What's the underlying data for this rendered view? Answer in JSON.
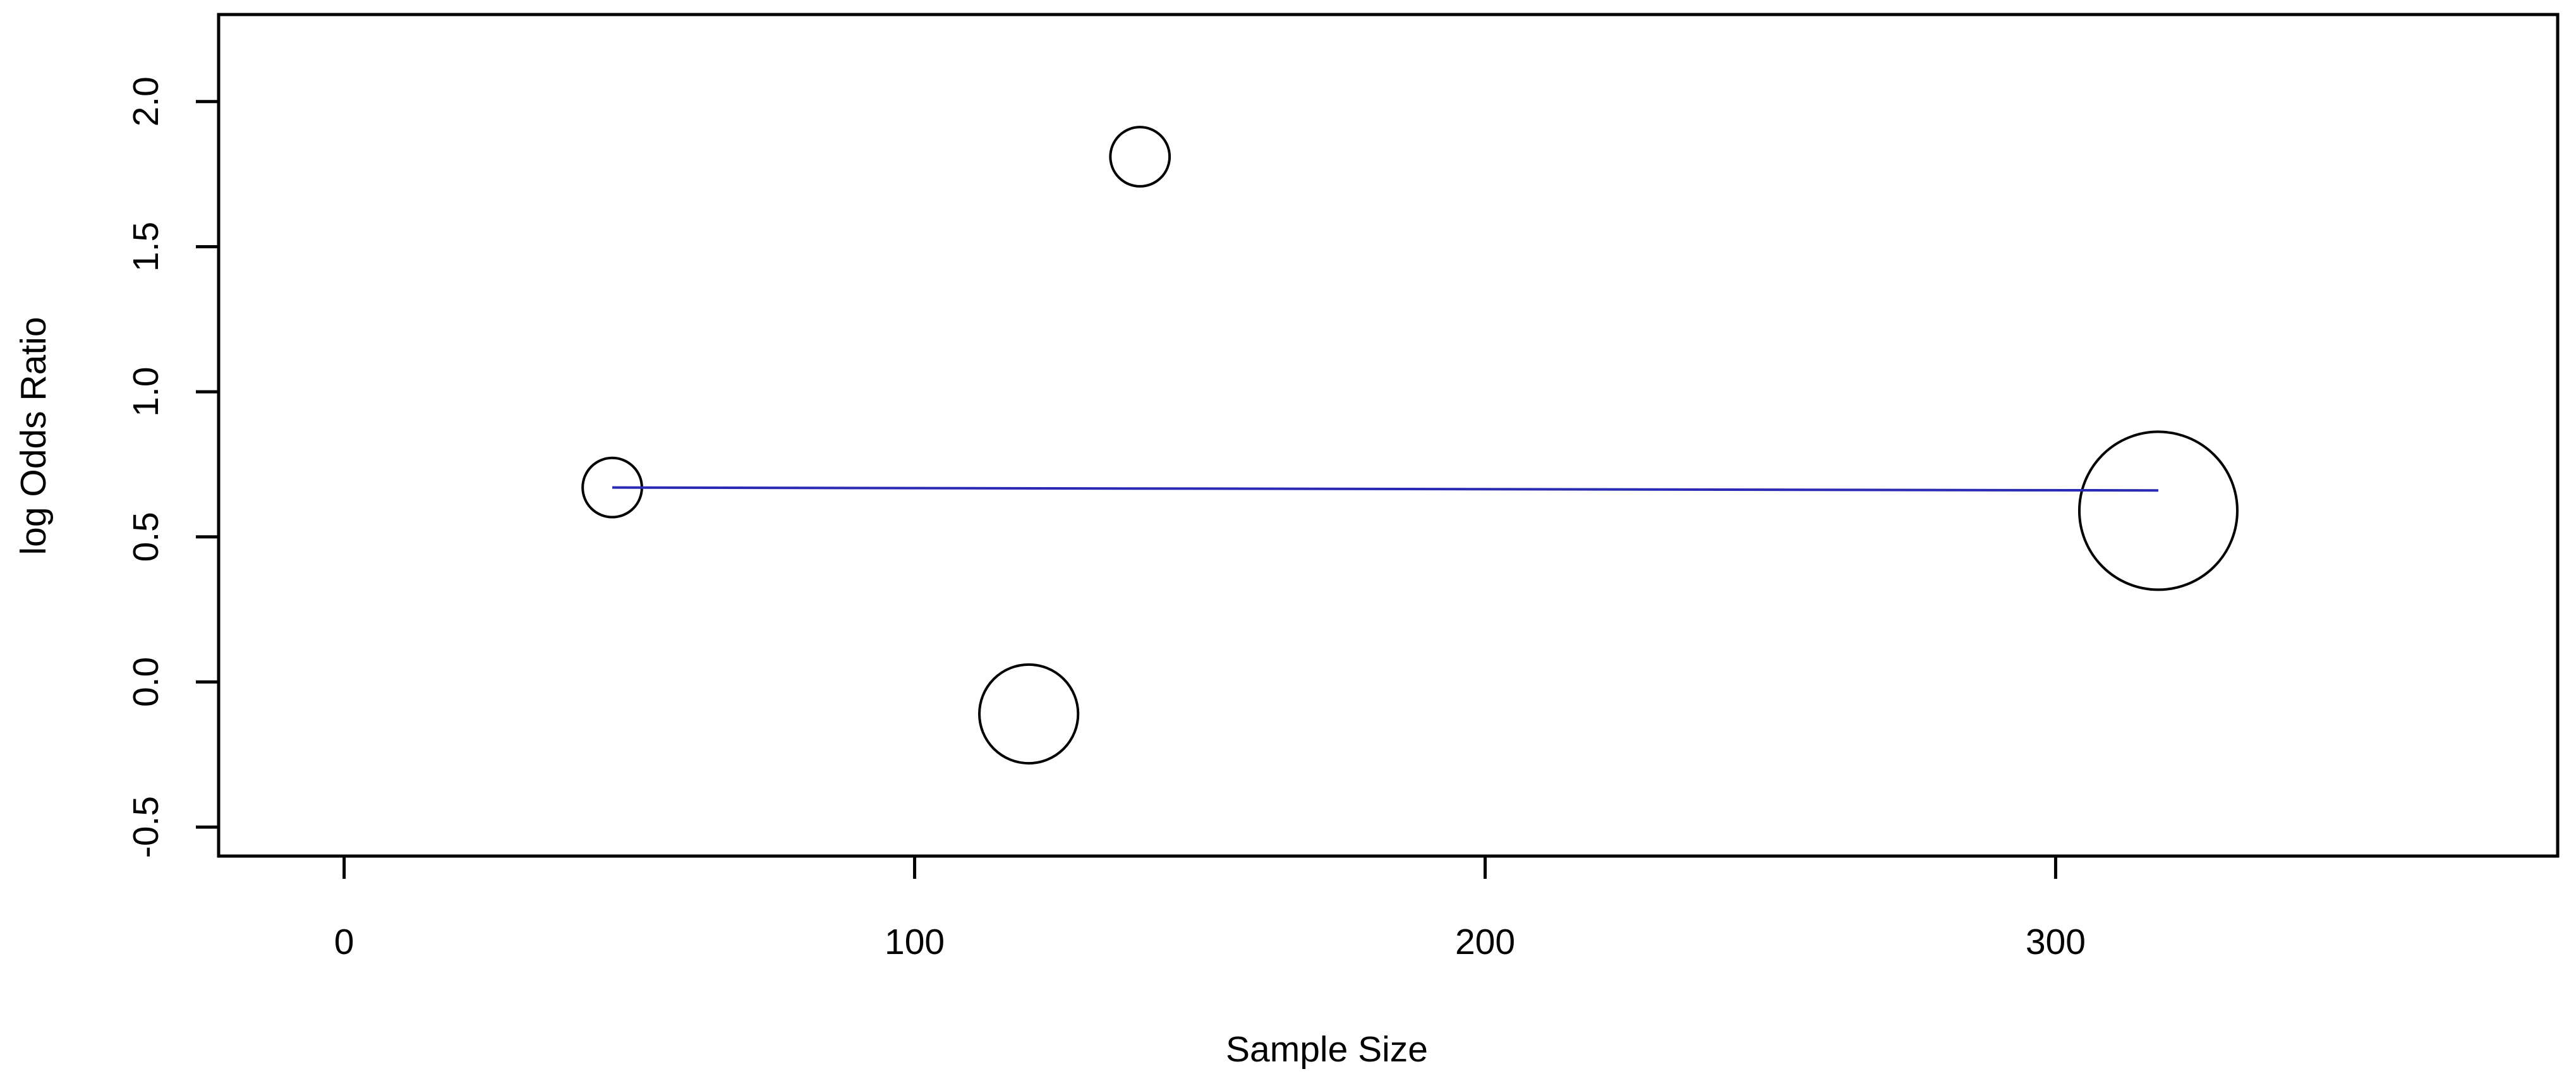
{
  "chart_data": {
    "type": "scatter",
    "xlabel": "Sample Size",
    "ylabel": "log Odds Ratio",
    "xlim": [
      -22,
      388
    ],
    "ylim": [
      -0.6,
      2.3
    ],
    "xticks": [
      0,
      100,
      200,
      300
    ],
    "yticks": [
      -0.5,
      {
        "value": 0,
        "label": "0.0"
      },
      0.5,
      {
        "value": 1,
        "label": "1.0"
      },
      1.5,
      {
        "value": 2,
        "label": "2.0"
      }
    ],
    "series": [
      {
        "type": "scatter",
        "color": "#000000",
        "x": [
          47,
          139.5,
          120,
          318
        ],
        "values": [
          0.67,
          1.81,
          -0.11,
          0.59
        ],
        "sizes": [
          0.375,
          0.375,
          0.625,
          1
        ]
      },
      {
        "type": "line",
        "color": "#2a2ab5",
        "x": [
          47,
          318
        ],
        "values": [
          0.67,
          0.66
        ]
      }
    ]
  }
}
